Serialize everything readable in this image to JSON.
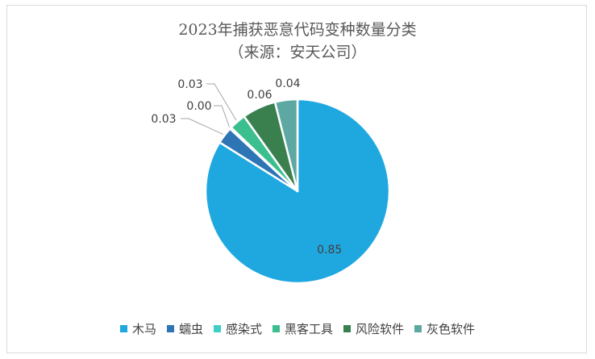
{
  "chart_data": {
    "type": "pie",
    "title": "2023年捕获恶意代码变种数量分类",
    "subtitle": "（来源：安天公司）",
    "legend_position": "bottom",
    "slices": [
      {
        "name": "木马",
        "value": 0.85,
        "label": "0.85",
        "color": "#1fa8e0"
      },
      {
        "name": "蠕虫",
        "value": 0.03,
        "label": "0.03",
        "color": "#2e75b6"
      },
      {
        "name": "感染式",
        "value": 0.003,
        "label": "0.00",
        "color": "#3ccfc8"
      },
      {
        "name": "黑客工具",
        "value": 0.03,
        "label": "0.03",
        "color": "#3cbf8f"
      },
      {
        "name": "风险软件",
        "value": 0.06,
        "label": "0.06",
        "color": "#3a7f4e"
      },
      {
        "name": "灰色软件",
        "value": 0.04,
        "label": "0.04",
        "color": "#5ea8a3"
      }
    ]
  }
}
